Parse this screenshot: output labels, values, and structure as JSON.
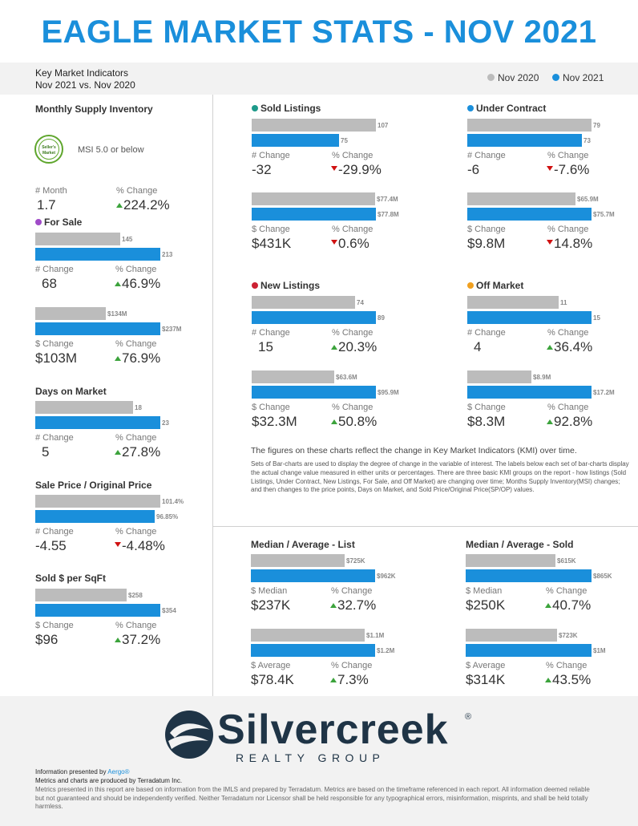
{
  "title": "EAGLE MARKET STATS - NOV 2021",
  "kmi": {
    "line1": "Key Market Indicators",
    "line2": "Nov 2021 vs. Nov 2020"
  },
  "legend": {
    "prev": "Nov 2020",
    "curr": "Nov 2021",
    "prev_color": "#bcbcbc",
    "curr_color": "#1a8fdb"
  },
  "colors": {
    "up": "#3ca33c",
    "down": "#d01111",
    "for_sale": "#a04bc8",
    "sold": "#1e9a8a",
    "under_contract": "#1a8fdb",
    "new_listings": "#cc2233",
    "off_market": "#f0a020"
  },
  "msi": {
    "title": "Monthly Supply Inventory",
    "badge_line1": "Seller's",
    "badge_line2": "Market",
    "desc": "MSI 5.0 or below",
    "label_a": "# Month",
    "value_a": "1.7",
    "label_b": "% Change",
    "value_b": "224.2%"
  },
  "labels": {
    "num_change": "# Change",
    "pct_change": "% Change",
    "dollar_change": "$ Change",
    "dollar_median": "$ Median",
    "dollar_average": "$ Average"
  },
  "chart_data": [
    {
      "id": "for_sale_count",
      "type": "bar",
      "title": "For Sale",
      "categories": [
        "Nov 2020",
        "Nov 2021"
      ],
      "values": [
        145,
        213
      ],
      "labels": [
        "145",
        "213"
      ],
      "change": "68",
      "pct": "46.9%",
      "dir": "up"
    },
    {
      "id": "for_sale_volume",
      "type": "bar",
      "categories": [
        "Nov 2020",
        "Nov 2021"
      ],
      "values": [
        134,
        237
      ],
      "labels": [
        "$134M",
        "$237M"
      ],
      "change": "$103M",
      "pct": "76.9%",
      "dir": "up"
    },
    {
      "id": "days_on_market",
      "type": "bar",
      "title": "Days on Market",
      "categories": [
        "Nov 2020",
        "Nov 2021"
      ],
      "values": [
        18,
        23
      ],
      "labels": [
        "18",
        "23"
      ],
      "change": "5",
      "pct": "27.8%",
      "dir": "up"
    },
    {
      "id": "sp_op",
      "type": "bar",
      "title": "Sale Price / Original Price",
      "categories": [
        "Nov 2020",
        "Nov 2021"
      ],
      "values": [
        101.4,
        96.85
      ],
      "labels": [
        "101.4%",
        "96.85%"
      ],
      "change": "-4.55",
      "pct": "-4.48%",
      "dir": "down"
    },
    {
      "id": "sold_per_sqft",
      "type": "bar",
      "title": "Sold $ per SqFt",
      "categories": [
        "Nov 2020",
        "Nov 2021"
      ],
      "values": [
        258,
        354
      ],
      "labels": [
        "$258",
        "$354"
      ],
      "change": "$96",
      "pct": "37.2%",
      "dir": "up"
    },
    {
      "id": "sold_count",
      "type": "bar",
      "title": "Sold Listings",
      "categories": [
        "Nov 2020",
        "Nov 2021"
      ],
      "values": [
        107,
        75
      ],
      "labels": [
        "107",
        "75"
      ],
      "change": "-32",
      "pct": "-29.9%",
      "dir": "down"
    },
    {
      "id": "sold_volume",
      "type": "bar",
      "categories": [
        "Nov 2020",
        "Nov 2021"
      ],
      "values": [
        77.4,
        77.8
      ],
      "labels": [
        "$77.4M",
        "$77.8M"
      ],
      "change": "$431K",
      "pct": "0.6%",
      "dir": "down"
    },
    {
      "id": "uc_count",
      "type": "bar",
      "title": "Under Contract",
      "categories": [
        "Nov 2020",
        "Nov 2021"
      ],
      "values": [
        79,
        73
      ],
      "labels": [
        "79",
        "73"
      ],
      "change": "-6",
      "pct": "-7.6%",
      "dir": "down"
    },
    {
      "id": "uc_volume",
      "type": "bar",
      "categories": [
        "Nov 2020",
        "Nov 2021"
      ],
      "values": [
        65.9,
        75.7
      ],
      "labels": [
        "$65.9M",
        "$75.7M"
      ],
      "change": "$9.8M",
      "pct": "14.8%",
      "dir": "down"
    },
    {
      "id": "new_count",
      "type": "bar",
      "title": "New Listings",
      "categories": [
        "Nov 2020",
        "Nov 2021"
      ],
      "values": [
        74,
        89
      ],
      "labels": [
        "74",
        "89"
      ],
      "change": "15",
      "pct": "20.3%",
      "dir": "up"
    },
    {
      "id": "new_volume",
      "type": "bar",
      "categories": [
        "Nov 2020",
        "Nov 2021"
      ],
      "values": [
        63.6,
        95.9
      ],
      "labels": [
        "$63.6M",
        "$95.9M"
      ],
      "change": "$32.3M",
      "pct": "50.8%",
      "dir": "up"
    },
    {
      "id": "off_count",
      "type": "bar",
      "title": "Off Market",
      "categories": [
        "Nov 2020",
        "Nov 2021"
      ],
      "values": [
        11,
        15
      ],
      "labels": [
        "11",
        "15"
      ],
      "change": "4",
      "pct": "36.4%",
      "dir": "up"
    },
    {
      "id": "off_volume",
      "type": "bar",
      "categories": [
        "Nov 2020",
        "Nov 2021"
      ],
      "values": [
        8.9,
        17.2
      ],
      "labels": [
        "$8.9M",
        "$17.2M"
      ],
      "change": "$8.3M",
      "pct": "92.8%",
      "dir": "up"
    },
    {
      "id": "list_median",
      "type": "bar",
      "title": "Median / Average - List",
      "categories": [
        "Nov 2020",
        "Nov 2021"
      ],
      "values": [
        725,
        962
      ],
      "labels": [
        "$725K",
        "$962K"
      ],
      "change": "$237K",
      "pct": "32.7%",
      "dir": "up"
    },
    {
      "id": "list_average",
      "type": "bar",
      "categories": [
        "Nov 2020",
        "Nov 2021"
      ],
      "values": [
        1.1,
        1.2
      ],
      "labels": [
        "$1.1M",
        "$1.2M"
      ],
      "change": "$78.4K",
      "pct": "7.3%",
      "dir": "up"
    },
    {
      "id": "sold_median",
      "type": "bar",
      "title": "Median / Average - Sold",
      "categories": [
        "Nov 2020",
        "Nov 2021"
      ],
      "values": [
        615,
        865
      ],
      "labels": [
        "$615K",
        "$865K"
      ],
      "change": "$250K",
      "pct": "40.7%",
      "dir": "up"
    },
    {
      "id": "sold_average",
      "type": "bar",
      "categories": [
        "Nov 2020",
        "Nov 2021"
      ],
      "values": [
        723,
        1000
      ],
      "labels": [
        "$723K",
        "$1M"
      ],
      "change": "$314K",
      "pct": "43.5%",
      "dir": "up"
    }
  ],
  "notes": {
    "line1": "The figures on these charts reflect the change in Key Market Indicators (KMI) over time.",
    "para": "Sets of Bar-charts are used to display the degree of change in the variable of interest. The labels below each set of bar-charts display the actual change value measured in either units or percentages. There are three basic KMI groups on the report - how listings (Sold Listings, Under Contract, New Listings, For Sale, and Off Market) are changing over time; Months Supply Inventory(MSI) changes; and then changes to the price points, Days on Market, and Sold Price/Original Price(SP/OP) values."
  },
  "footer": {
    "logo_word": "Silvercreek",
    "logo_reg": "®",
    "logo_sub": "REALTY GROUP",
    "presented_prefix": "Information presented by ",
    "presented_link": "Aergo®",
    "produced": "Metrics and charts are produced by Terradatum Inc.",
    "disclaimer": "Metrics presented in this report are based on information from the IMLS and prepared by Terradatum. Metrics are based on the timeframe referenced in each report. All information deemed reliable but not guaranteed and should be independently verified. Neither Terradatum nor Licensor shall be held responsible for any typographical errors, misinformation, misprints, and shall be held totally harmless."
  }
}
